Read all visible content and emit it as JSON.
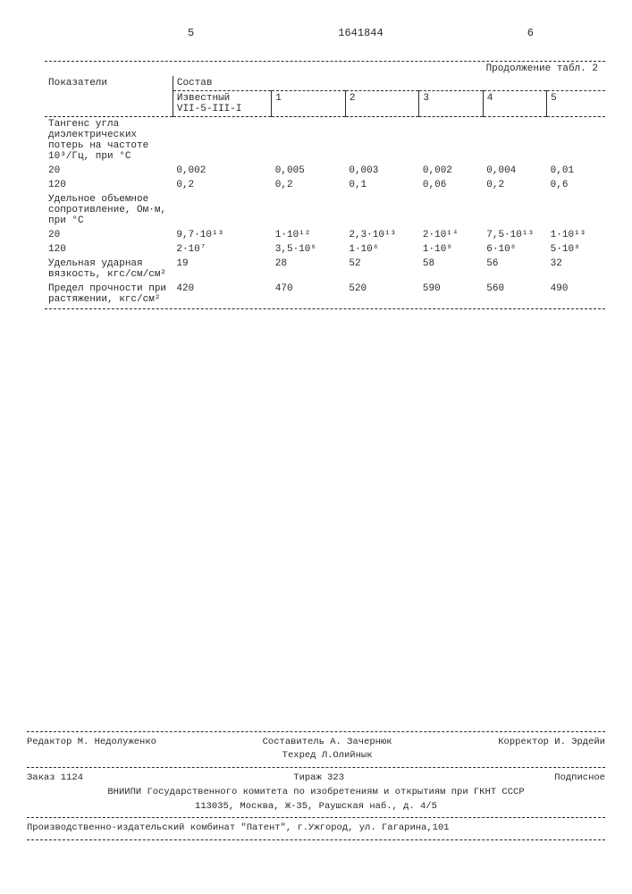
{
  "header": {
    "left_page": "5",
    "doc_number": "1641844",
    "right_page": "6"
  },
  "table": {
    "continuation": "Продолжение табл. 2",
    "col_label_left": "Показатели",
    "group_label": "Состав",
    "columns": [
      "Известный\nVII-5-III-I",
      "1",
      "2",
      "3",
      "4",
      "5"
    ],
    "rows": [
      {
        "label": "Тангенс угла диэлектрических потерь на частоте 10³/Гц, при °С",
        "values": [
          "",
          "",
          "",
          "",
          "",
          ""
        ]
      },
      {
        "label": "20",
        "indent": true,
        "values": [
          "0,002",
          "0,005",
          "0,003",
          "0,002",
          "0,004",
          "0,01"
        ]
      },
      {
        "label": "120",
        "indent": true,
        "values": [
          "0,2",
          "0,2",
          "0,1",
          "0,06",
          "0,2",
          "0,6"
        ]
      },
      {
        "label": "Удельное объемное сопротивление, Ом·м, при °С",
        "values": [
          "",
          "",
          "",
          "",
          "",
          ""
        ]
      },
      {
        "label": "20",
        "indent": true,
        "values": [
          "9,7·10¹³",
          "1·10¹²",
          "2,3·10¹³",
          "2·10¹⁴",
          "7,5·10¹³",
          "1·10¹³"
        ]
      },
      {
        "label": "120",
        "indent": true,
        "values": [
          "2·10⁷",
          "3,5·10⁶",
          "1·10⁸",
          "1·10⁹",
          "6·10⁸",
          "5·10⁸"
        ]
      },
      {
        "label": "Удельная ударная вязкость, кгс/см/см²",
        "values": [
          "19",
          "28",
          "52",
          "58",
          "56",
          "32"
        ]
      },
      {
        "label": "Предел прочности при растяжении, кгс/см²",
        "values": [
          "420",
          "470",
          "520",
          "590",
          "560",
          "490"
        ]
      }
    ]
  },
  "footer": {
    "editor_label": "Редактор",
    "editor_name": "М. Недолуженко",
    "compiler_label": "Составитель",
    "compiler_name": "А. Зачернюк",
    "tehred_label": "Техред",
    "tehred_name": "Л.Олийнык",
    "corrector_label": "Корректор",
    "corrector_name": "И. Эрдейи",
    "order": "Заказ 1124",
    "tirazh": "Тираж 323",
    "subscription": "Подписное",
    "org": "ВНИИПИ Государственного комитета по изобретениям и открытиям при ГКНТ СССР",
    "address": "113035, Москва, Ж-35, Раушская наб., д. 4/5",
    "prod": "Производственно-издательский комбинат \"Патент\", г.Ужгород, ул. Гагарина,101"
  }
}
